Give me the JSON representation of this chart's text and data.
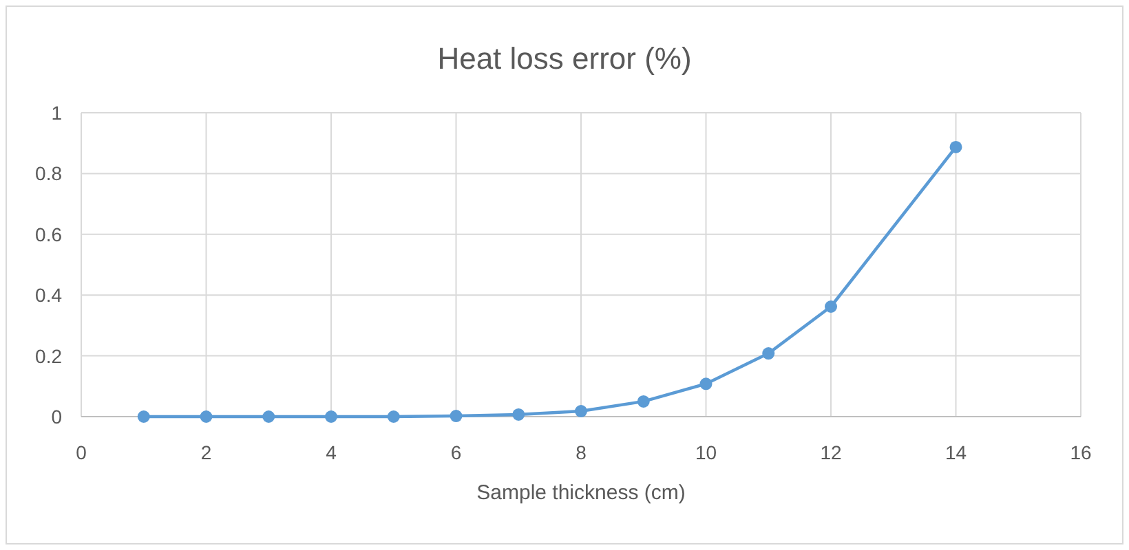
{
  "chart_data": {
    "type": "line",
    "title": "Heat loss error (%)",
    "xlabel": "Sample thickness (cm)",
    "x": [
      1,
      2,
      3,
      4,
      5,
      6,
      7,
      8,
      9,
      10,
      11,
      12,
      14
    ],
    "series": [
      {
        "color": "#5b9bd5",
        "values": [
          0,
          0,
          0,
          0,
          0,
          0.002,
          0.007,
          0.018,
          0.05,
          0.108,
          0.208,
          0.362,
          0.887
        ]
      }
    ],
    "xlim": [
      0,
      16
    ],
    "xticks": [
      0,
      2,
      4,
      6,
      8,
      10,
      12,
      14,
      16
    ],
    "ylim": [
      0,
      1
    ],
    "yticks": [
      0,
      0.2,
      0.4,
      0.6,
      0.8,
      1
    ],
    "grid": true,
    "marker": "circle",
    "line_style": "solid"
  }
}
